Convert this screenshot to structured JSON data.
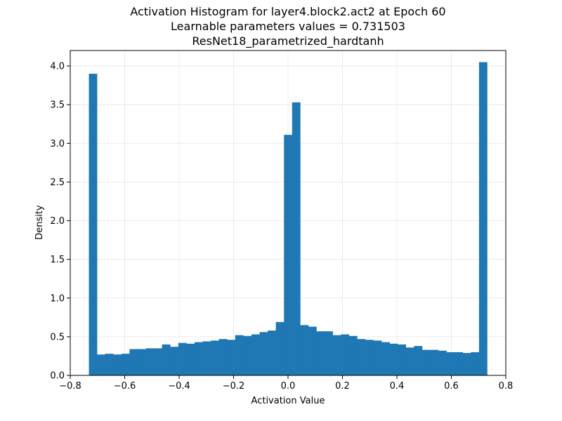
{
  "chart_data": {
    "type": "bar",
    "title": "Activation Histogram for layer4.block2.act2 at Epoch 60",
    "subtitle": "Learnable parameters values = 0.731503",
    "subtitle2": "ResNet18_parametrized_hardtanh",
    "xlabel": "Activation Value",
    "ylabel": "Density",
    "xlim": [
      -0.8,
      0.8
    ],
    "ylim": [
      0,
      4.2
    ],
    "grid": true,
    "xticks": [
      -0.8,
      -0.6,
      -0.4,
      -0.2,
      0.0,
      0.2,
      0.4,
      0.6,
      0.8
    ],
    "xtick_labels": [
      "−0.8",
      "−0.6",
      "−0.4",
      "−0.2",
      "0.0",
      "0.2",
      "0.4",
      "0.6",
      "0.8"
    ],
    "yticks": [
      0.0,
      0.5,
      1.0,
      1.5,
      2.0,
      2.5,
      3.0,
      3.5,
      4.0
    ],
    "ytick_labels": [
      "0.0",
      "0.5",
      "1.0",
      "1.5",
      "2.0",
      "2.5",
      "3.0",
      "3.5",
      "4.0"
    ],
    "color": "#1f77b4",
    "bin_range": [
      -0.731503,
      0.731503
    ],
    "values": [
      3.9,
      0.27,
      0.28,
      0.27,
      0.28,
      0.34,
      0.34,
      0.35,
      0.35,
      0.4,
      0.37,
      0.42,
      0.41,
      0.43,
      0.44,
      0.45,
      0.47,
      0.46,
      0.52,
      0.51,
      0.53,
      0.56,
      0.58,
      0.69,
      3.11,
      3.53,
      0.65,
      0.63,
      0.57,
      0.57,
      0.52,
      0.53,
      0.51,
      0.47,
      0.46,
      0.45,
      0.43,
      0.41,
      0.4,
      0.36,
      0.38,
      0.33,
      0.33,
      0.32,
      0.3,
      0.3,
      0.29,
      0.3,
      4.05
    ]
  }
}
